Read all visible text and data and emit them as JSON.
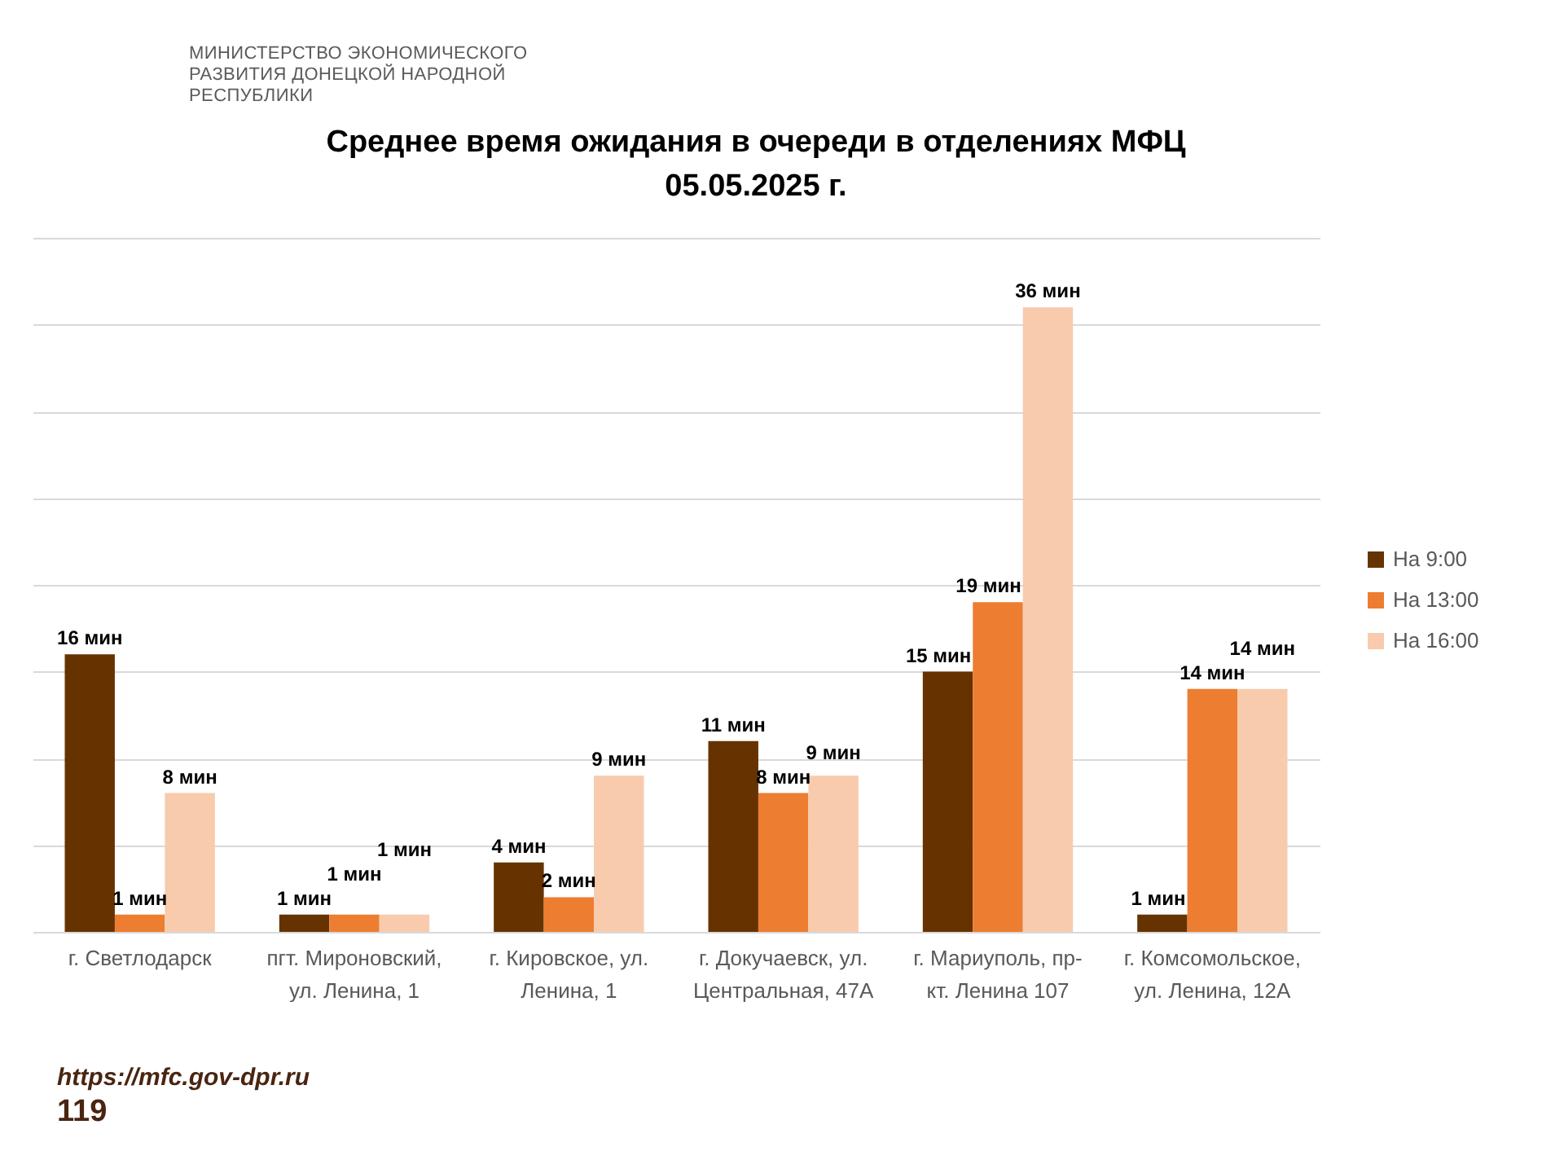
{
  "chart_data": {
    "type": "bar",
    "title": "Среднее время ожидания в очереди в отделениях МФЦ",
    "subtitle": "05.05.2025 г.",
    "categories": [
      "г. Светлодарск",
      "пгт. Мироновский, ул. Ленина, 1",
      "г. Кировское, ул. Ленина, 1",
      "г. Докучаевск, ул. Центральная, 47А",
      "г. Мариуполь, пр-кт. Ленина 107",
      "г. Комсомольское, ул. Ленина, 12А"
    ],
    "series": [
      {
        "name": "На 9:00",
        "color": "#663300",
        "values": [
          16,
          1,
          4,
          11,
          15,
          1
        ],
        "value_labels": [
          "16 мин",
          "1 мин",
          "4 мин",
          "11 мин",
          "15 мин",
          "1 мин"
        ]
      },
      {
        "name": "На 13:00",
        "color": "#ed7d31",
        "values": [
          1,
          1,
          2,
          8,
          19,
          14
        ],
        "value_labels": [
          "1 мин",
          "1 мин",
          "2 мин",
          "8 мин",
          "19 мин",
          "14 мин"
        ]
      },
      {
        "name": "На 16:00",
        "color": "#f8cbad",
        "values": [
          8,
          1,
          9,
          9,
          36,
          14
        ],
        "value_labels": [
          "8 мин",
          "1 мин",
          "9 мин",
          "9 мин",
          "36 мин",
          "14 мин"
        ]
      }
    ],
    "ylim": [
      0,
      40
    ],
    "yticks": [
      0,
      5,
      10,
      15,
      20,
      25,
      30,
      35,
      40
    ],
    "tick_labels": "x",
    "grid": "y",
    "legend": "right",
    "annotations": [
      "МИНИСТЕРСТВО ЭКОНОМИЧЕСКОГО РАЗВИТИЯ ДОНЕЦКОЙ НАРОДНОЙ РЕСПУБЛИКИ",
      "https://mfc.gov-dpr.ru",
      "119"
    ]
  }
}
